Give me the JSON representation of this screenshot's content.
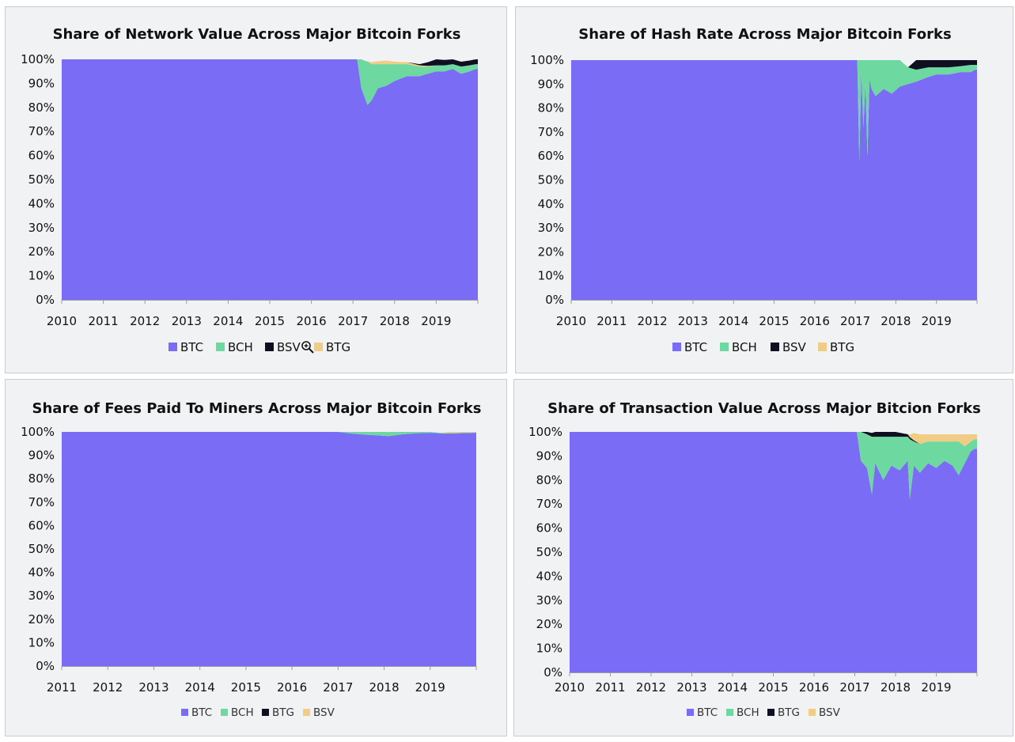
{
  "chart_data": [
    {
      "type": "area",
      "title": "Share of Network Value Across Major Bitcoin Forks",
      "xlabel": "",
      "ylabel": "",
      "x_ticks": [
        "2010",
        "2011",
        "2012",
        "2013",
        "2014",
        "2015",
        "2016",
        "2017",
        "2018",
        "2019"
      ],
      "y_ticks": [
        "100%",
        "90%",
        "80%",
        "70%",
        "60%",
        "50%",
        "40%",
        "30%",
        "20%",
        "10%",
        "0%"
      ],
      "xlim": [
        2010,
        2020
      ],
      "ylim": [
        0,
        100
      ],
      "legend": [
        "BTC",
        "BCH",
        "BSV",
        "BTG"
      ],
      "legend_position": "bottom",
      "grid": false,
      "stack_order": [
        "BTC",
        "BCH",
        "BTG",
        "BSV"
      ],
      "series": [
        {
          "name": "BTC",
          "color": "#7b6cf6",
          "x": [
            2010,
            2017.1,
            2017.2,
            2017.35,
            2017.45,
            2017.6,
            2017.8,
            2018.0,
            2018.3,
            2018.6,
            2018.8,
            2019.0,
            2019.2,
            2019.4,
            2019.6,
            2019.8,
            2019.95
          ],
          "values": [
            100,
            100,
            88,
            81,
            83,
            88,
            89,
            91,
            93,
            93,
            94,
            95,
            95,
            96,
            94,
            95,
            96
          ]
        },
        {
          "name": "BCH",
          "color": "#6dd9a1",
          "x": [
            2010,
            2017.1,
            2017.2,
            2017.35,
            2017.45,
            2017.6,
            2017.8,
            2018.0,
            2018.3,
            2018.6,
            2018.8,
            2019.0,
            2019.2,
            2019.4,
            2019.6,
            2019.8,
            2019.95
          ],
          "values": [
            0,
            0,
            12,
            18,
            15,
            10,
            9,
            7,
            5,
            4,
            3,
            2.5,
            2.5,
            2,
            3,
            2.5,
            2
          ]
        },
        {
          "name": "BTG",
          "color": "#f0cc84",
          "x": [
            2010,
            2017.3,
            2017.5,
            2017.8,
            2018.0,
            2018.3,
            2018.6,
            2018.8,
            2019.0,
            2019.95
          ],
          "values": [
            0,
            0,
            1,
            1.5,
            1,
            0.8,
            0.5,
            0.3,
            0,
            0
          ]
        },
        {
          "name": "BSV",
          "color": "#0f0f22",
          "x": [
            2010,
            2018.3,
            2018.6,
            2018.8,
            2019.0,
            2019.4,
            2019.95
          ],
          "values": [
            0,
            0,
            0.5,
            1.5,
            2.5,
            2,
            2
          ]
        }
      ]
    },
    {
      "type": "area",
      "title": "Share of Hash Rate Across Major Bitcoin Forks",
      "xlabel": "",
      "ylabel": "",
      "x_ticks": [
        "2010",
        "2011",
        "2012",
        "2013",
        "2014",
        "2015",
        "2016",
        "2017",
        "2018",
        "2019"
      ],
      "y_ticks": [
        "100%",
        "90%",
        "80%",
        "70%",
        "60%",
        "50%",
        "40%",
        "30%",
        "20%",
        "10%",
        "0%"
      ],
      "xlim": [
        2010,
        2020
      ],
      "ylim": [
        0,
        100
      ],
      "legend": [
        "BTC",
        "BCH",
        "BSV",
        "BTG"
      ],
      "legend_position": "bottom",
      "grid": false,
      "stack_order": [
        "BTC",
        "BCH",
        "BTG",
        "BSV"
      ],
      "series": [
        {
          "name": "BTC",
          "color": "#7b6cf6",
          "x": [
            2010,
            2017.05,
            2017.1,
            2017.15,
            2017.2,
            2017.25,
            2017.3,
            2017.35,
            2017.4,
            2017.5,
            2017.7,
            2017.9,
            2018.1,
            2018.3,
            2018.5,
            2018.8,
            2019.0,
            2019.3,
            2019.6,
            2019.85,
            2019.95
          ],
          "values": [
            100,
            100,
            58,
            95,
            72,
            90,
            60,
            92,
            88,
            85,
            88,
            86,
            89,
            90,
            91,
            93,
            94,
            94,
            95,
            95,
            96
          ]
        },
        {
          "name": "BCH",
          "color": "#6dd9a1",
          "x": [
            2010,
            2017.05,
            2017.1,
            2017.15,
            2017.2,
            2017.25,
            2017.3,
            2017.35,
            2017.4,
            2017.5,
            2017.7,
            2017.9,
            2018.1,
            2018.3,
            2018.5,
            2018.8,
            2019.0,
            2019.3,
            2019.6,
            2019.85,
            2019.95
          ],
          "values": [
            0,
            0,
            42,
            5,
            28,
            10,
            40,
            8,
            12,
            15,
            12,
            14,
            11,
            7,
            5,
            4,
            3,
            3,
            2.5,
            3,
            2
          ]
        },
        {
          "name": "BTG",
          "color": "#f0cc84",
          "x": [
            2010,
            2019.95
          ],
          "values": [
            0,
            0
          ]
        },
        {
          "name": "BSV",
          "color": "#0f0f22",
          "x": [
            2010,
            2018.3,
            2018.5,
            2018.8,
            2019.0,
            2019.3,
            2019.6,
            2019.85,
            2019.95
          ],
          "values": [
            0,
            0,
            4,
            3,
            3,
            3,
            2.5,
            2,
            2
          ]
        }
      ]
    },
    {
      "type": "area",
      "title": "Share of Fees Paid To Miners Across Major Bitcoin Forks",
      "xlabel": "",
      "ylabel": "",
      "x_ticks": [
        "2011",
        "2012",
        "2013",
        "2014",
        "2015",
        "2016",
        "2017",
        "2018",
        "2019"
      ],
      "y_ticks": [
        "100%",
        "90%",
        "80%",
        "70%",
        "60%",
        "50%",
        "40%",
        "30%",
        "20%",
        "10%",
        "0%"
      ],
      "xlim": [
        2011,
        2020
      ],
      "ylim": [
        0,
        100
      ],
      "legend": [
        "BTC",
        "BCH",
        "BTG",
        "BSV"
      ],
      "legend_position": "bottom",
      "grid": false,
      "stack_order": [
        "BTC",
        "BCH",
        "BTG",
        "BSV"
      ],
      "series": [
        {
          "name": "BTC",
          "color": "#7b6cf6",
          "x": [
            2011,
            2017.0,
            2017.3,
            2017.6,
            2017.9,
            2018.1,
            2018.4,
            2018.7,
            2019.0,
            2019.3,
            2019.6,
            2019.95
          ],
          "values": [
            100,
            100,
            99.3,
            98.8,
            98.5,
            98.2,
            99,
            99.4,
            99.6,
            99.3,
            99.4,
            99.6
          ]
        },
        {
          "name": "BCH",
          "color": "#6dd9a1",
          "x": [
            2011,
            2017.0,
            2017.3,
            2017.6,
            2017.9,
            2018.1,
            2018.4,
            2018.7,
            2019.0,
            2019.3,
            2019.6,
            2019.95
          ],
          "values": [
            0,
            0,
            0.7,
            1.2,
            1.5,
            1.8,
            1,
            0.6,
            0.4,
            0.2,
            0.2,
            0.2
          ]
        },
        {
          "name": "BTG",
          "color": "#0f0f22",
          "x": [
            2011,
            2019.95
          ],
          "values": [
            0,
            0
          ]
        },
        {
          "name": "BSV",
          "color": "#f0cc84",
          "x": [
            2011,
            2019.2,
            2019.4,
            2019.6,
            2019.95
          ],
          "values": [
            0,
            0,
            0.5,
            0.4,
            0.2
          ]
        }
      ]
    },
    {
      "type": "area",
      "title": "Share of Transaction Value Across Major Bitcion Forks",
      "xlabel": "",
      "ylabel": "",
      "x_ticks": [
        "2010",
        "2011",
        "2012",
        "2013",
        "2014",
        "2015",
        "2016",
        "2017",
        "2018",
        "2019"
      ],
      "y_ticks": [
        "100%",
        "90%",
        "80%",
        "70%",
        "60%",
        "50%",
        "40%",
        "30%",
        "20%",
        "10%",
        "0%"
      ],
      "xlim": [
        2010,
        2020
      ],
      "ylim": [
        0,
        100
      ],
      "legend": [
        "BTC",
        "BCH",
        "BTG",
        "BSV"
      ],
      "legend_position": "bottom",
      "grid": false,
      "stack_order": [
        "BTC",
        "BCH",
        "BTG",
        "BSV"
      ],
      "series": [
        {
          "name": "BTC",
          "color": "#7b6cf6",
          "x": [
            2010,
            2017.05,
            2017.15,
            2017.3,
            2017.42,
            2017.5,
            2017.7,
            2017.9,
            2018.1,
            2018.3,
            2018.35,
            2018.45,
            2018.6,
            2018.8,
            2019.0,
            2019.2,
            2019.4,
            2019.55,
            2019.7,
            2019.85,
            2019.95
          ],
          "values": [
            100,
            100,
            88,
            85,
            74,
            87,
            80,
            86,
            84,
            88,
            72,
            86,
            83,
            87,
            85,
            88,
            86,
            82,
            87,
            92,
            93
          ]
        },
        {
          "name": "BCH",
          "color": "#6dd9a1",
          "x": [
            2010,
            2017.05,
            2017.15,
            2017.3,
            2017.42,
            2017.5,
            2017.7,
            2017.9,
            2018.1,
            2018.3,
            2018.35,
            2018.45,
            2018.6,
            2018.8,
            2019.0,
            2019.2,
            2019.4,
            2019.55,
            2019.7,
            2019.85,
            2019.95
          ],
          "values": [
            0,
            0,
            12,
            14,
            24,
            11,
            18,
            12,
            14,
            10,
            25,
            10,
            12,
            9,
            11,
            8,
            10,
            14,
            7,
            4,
            4
          ]
        },
        {
          "name": "BTG",
          "color": "#0f0f22",
          "x": [
            2010,
            2017.05,
            2017.3,
            2017.5,
            2017.7,
            2018.0,
            2018.3,
            2018.45,
            2018.6,
            2019.95
          ],
          "values": [
            0,
            0,
            1,
            2,
            2,
            2,
            1,
            0.5,
            0,
            0
          ]
        },
        {
          "name": "BSV",
          "color": "#f0cc84",
          "x": [
            2010,
            2018.3,
            2018.45,
            2018.6,
            2018.8,
            2019.0,
            2019.2,
            2019.4,
            2019.55,
            2019.7,
            2019.85,
            2019.95
          ],
          "values": [
            0,
            0,
            3,
            4,
            3,
            3,
            3,
            3,
            3,
            5,
            3,
            2
          ]
        }
      ]
    }
  ]
}
